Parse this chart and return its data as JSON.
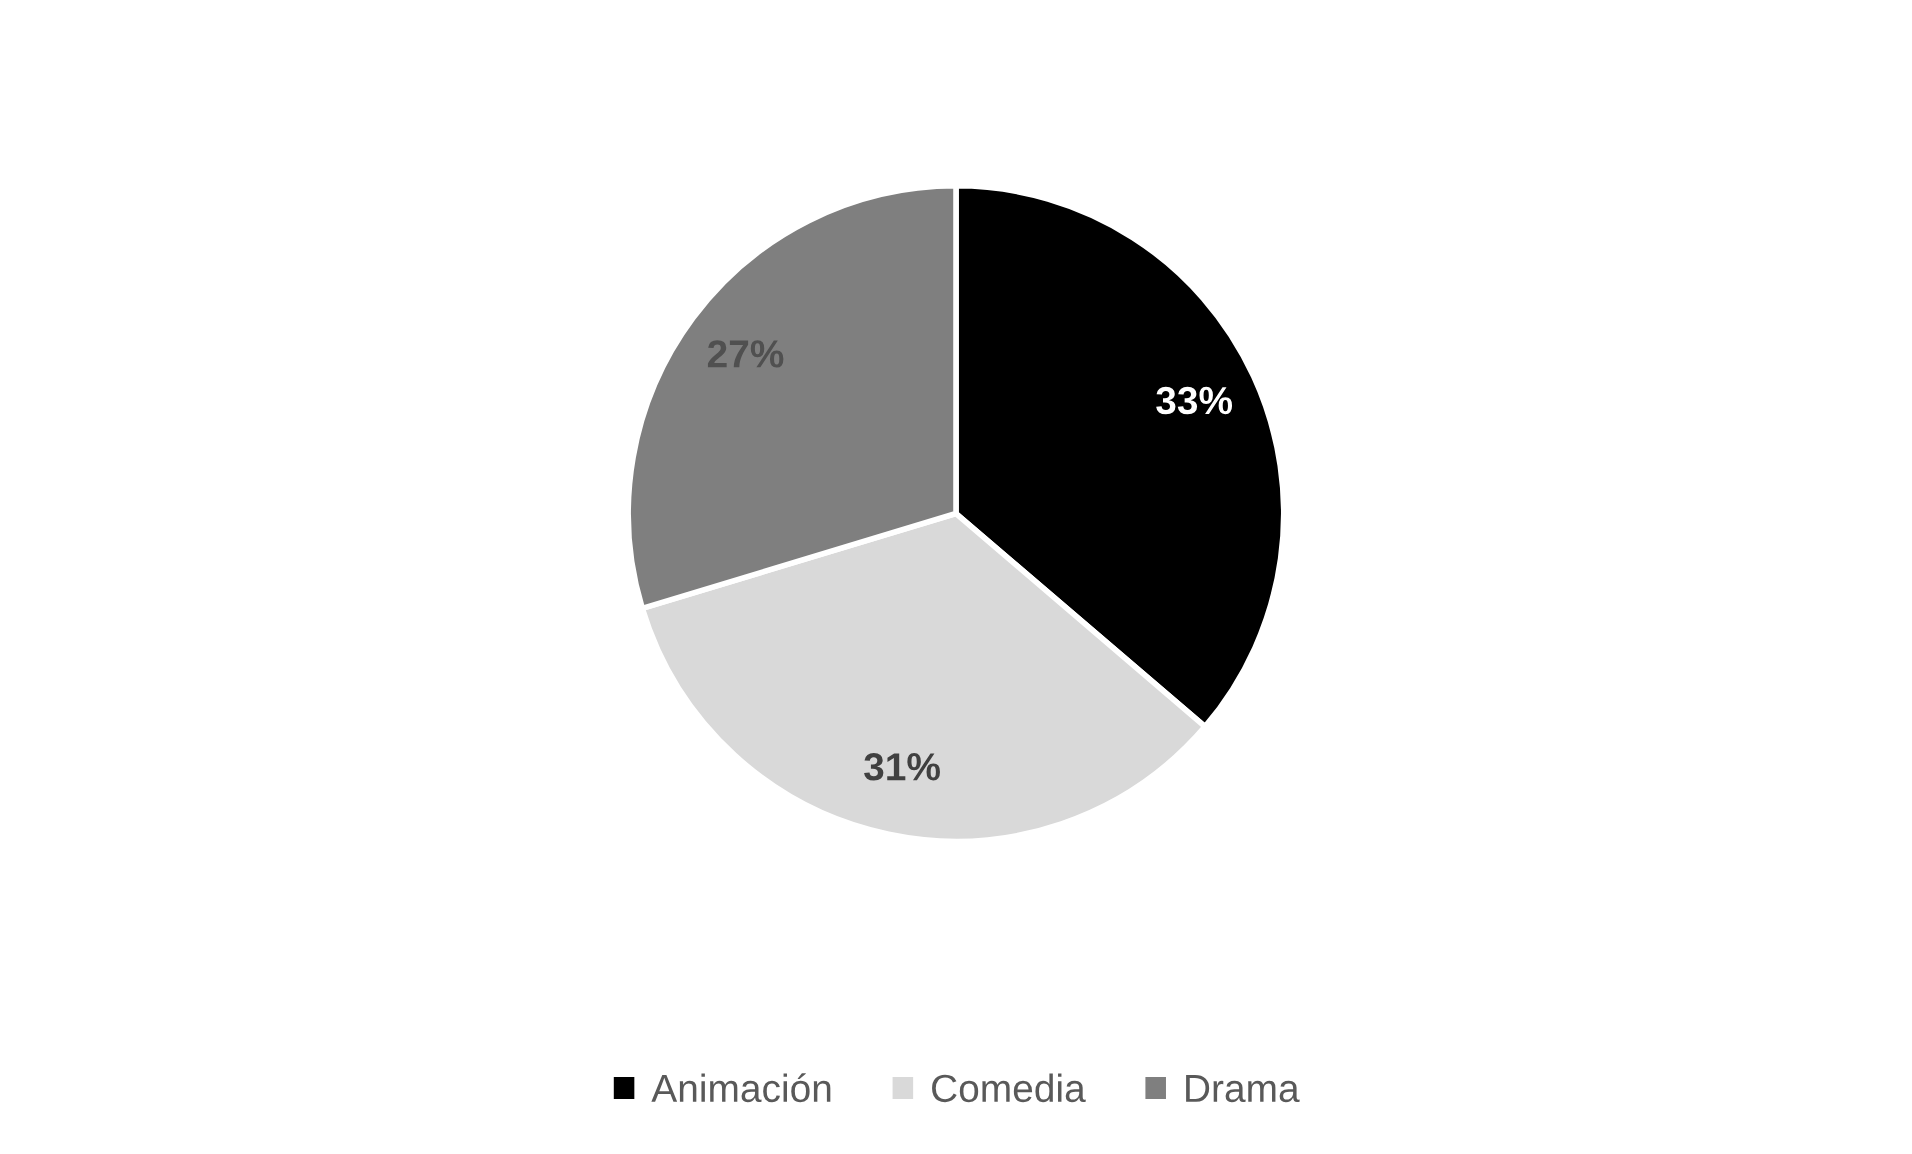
{
  "chart_data": {
    "type": "pie",
    "categories": [
      "Animación",
      "Comedia",
      "Drama"
    ],
    "values": [
      33,
      31,
      27
    ],
    "colors": [
      "#000000",
      "#d9d9d9",
      "#7f7f7f"
    ],
    "value_labels": [
      "33%",
      "31%",
      "27%"
    ],
    "legend": "bottom"
  }
}
